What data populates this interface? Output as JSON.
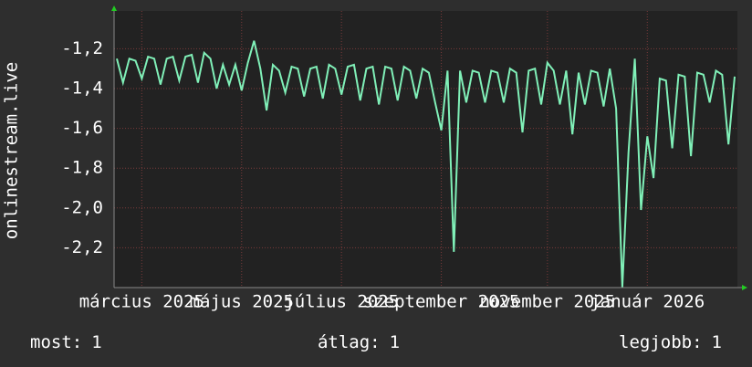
{
  "chart_data": {
    "type": "line",
    "y_label": "onlinestream.live",
    "categories": [
      null,
      null,
      null,
      null,
      "március 2025",
      null,
      null,
      null,
      null,
      null,
      null,
      null,
      null,
      null,
      null,
      null,
      null,
      null,
      null,
      null,
      "május 2025",
      null,
      null,
      null,
      null,
      null,
      null,
      null,
      null,
      null,
      null,
      null,
      null,
      null,
      null,
      null,
      "július 2025",
      null,
      null,
      null,
      null,
      null,
      null,
      null,
      null,
      null,
      null,
      null,
      null,
      null,
      null,
      null,
      "szeptember 2025",
      null,
      null,
      null,
      null,
      null,
      null,
      null,
      null,
      null,
      null,
      null,
      null,
      null,
      null,
      null,
      null,
      "november 2025",
      null,
      null,
      null,
      null,
      null,
      null,
      null,
      null,
      null,
      null,
      null,
      null,
      null,
      null,
      null,
      "január 2026",
      null,
      null,
      null,
      null,
      null,
      null,
      null,
      null,
      null,
      null,
      null,
      null,
      null,
      null
    ],
    "series": [
      {
        "color": "#80f0b8",
        "values": [
          -1.25,
          -1.37,
          -1.25,
          -1.26,
          -1.35,
          -1.24,
          -1.25,
          -1.38,
          -1.25,
          -1.24,
          -1.36,
          -1.24,
          -1.23,
          -1.37,
          -1.22,
          -1.25,
          -1.4,
          -1.28,
          -1.38,
          -1.28,
          -1.41,
          -1.27,
          -1.16,
          -1.3,
          -1.51,
          -1.28,
          -1.31,
          -1.42,
          -1.29,
          -1.3,
          -1.44,
          -1.3,
          -1.29,
          -1.45,
          -1.28,
          -1.3,
          -1.43,
          -1.29,
          -1.28,
          -1.46,
          -1.3,
          -1.29,
          -1.48,
          -1.29,
          -1.3,
          -1.46,
          -1.29,
          -1.31,
          -1.45,
          -1.3,
          -1.32,
          -1.47,
          -1.61,
          -1.31,
          -2.22,
          -1.31,
          -1.47,
          -1.31,
          -1.32,
          -1.47,
          -1.31,
          -1.32,
          -1.47,
          -1.3,
          -1.32,
          -1.62,
          -1.31,
          -1.3,
          -1.48,
          -1.27,
          -1.31,
          -1.48,
          -1.31,
          -1.63,
          -1.32,
          -1.48,
          -1.31,
          -1.32,
          -1.49,
          -1.3,
          -1.5,
          -2.4,
          -1.72,
          -1.25,
          -2.01,
          -1.64,
          -1.85,
          -1.35,
          -1.36,
          -1.7,
          -1.33,
          -1.34,
          -1.74,
          -1.32,
          -1.33,
          -1.47,
          -1.31,
          -1.33,
          -1.68,
          -1.34
        ]
      }
    ],
    "ylim": [
      -2.4,
      -1.01
    ],
    "yticks": [
      {
        "value": -1.2,
        "label": "-1,2"
      },
      {
        "value": -1.4,
        "label": "-1,4"
      },
      {
        "value": -1.6,
        "label": "-1,6"
      },
      {
        "value": -1.8,
        "label": "-1,8"
      },
      {
        "value": -2.0,
        "label": "-2,0"
      },
      {
        "value": -2.2,
        "label": "-2,2"
      }
    ],
    "grid": true,
    "legend": [
      {
        "label": "most:",
        "value": 1
      },
      {
        "label": "átlag:",
        "value": 1
      },
      {
        "label": "legjobb:",
        "value": 1
      }
    ]
  }
}
